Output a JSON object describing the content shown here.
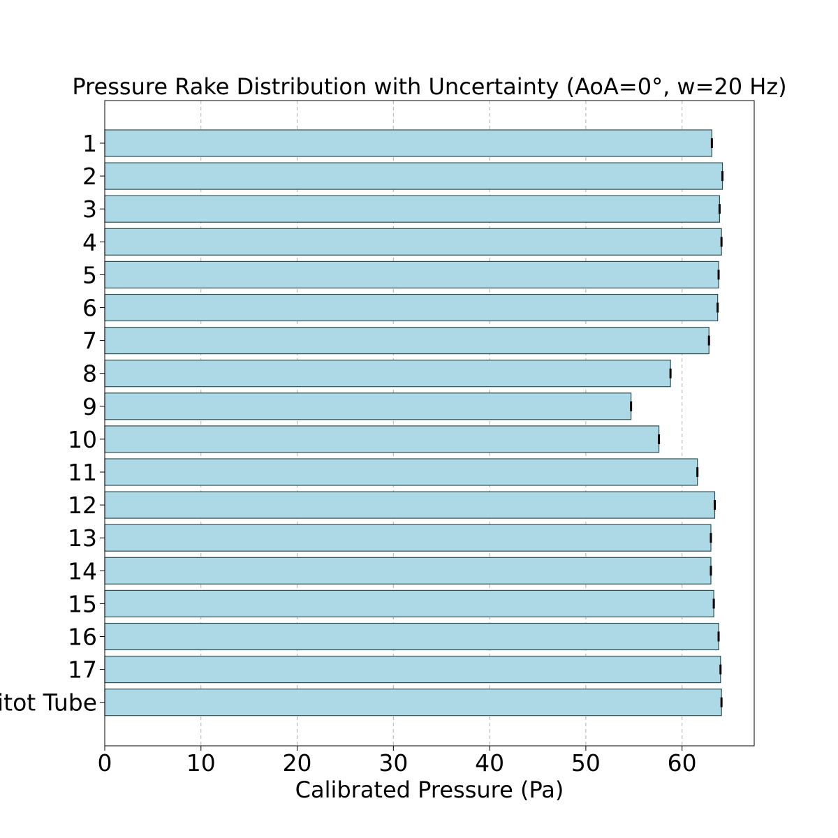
{
  "chart_data": {
    "type": "bar",
    "orientation": "horizontal",
    "title": "Pressure Rake Distribution with Uncertainty (AoA=0°, w=20 Hz)",
    "xlabel": "Calibrated Pressure (Pa)",
    "ylabel": "",
    "categories": [
      "1",
      "2",
      "3",
      "4",
      "5",
      "6",
      "7",
      "8",
      "9",
      "10",
      "11",
      "12",
      "13",
      "14",
      "15",
      "16",
      "17",
      "Pitot Tube"
    ],
    "values": [
      63.1,
      64.2,
      63.9,
      64.1,
      63.8,
      63.7,
      62.8,
      58.8,
      54.7,
      57.6,
      61.6,
      63.4,
      63.0,
      63.0,
      63.3,
      63.8,
      64.0,
      64.1
    ],
    "errors": [
      0.12,
      0.12,
      0.12,
      0.12,
      0.12,
      0.12,
      0.12,
      0.12,
      0.12,
      0.12,
      0.12,
      0.12,
      0.12,
      0.12,
      0.12,
      0.12,
      0.12,
      0.12
    ],
    "xlim": [
      0,
      67.5
    ],
    "xticks": [
      0,
      10,
      20,
      30,
      40,
      50,
      60
    ],
    "grid": "x-dashed",
    "legend": "none",
    "bar_color": "#add8e6",
    "bar_edge_color": "#2f4f4f",
    "error_color": "#000000"
  }
}
